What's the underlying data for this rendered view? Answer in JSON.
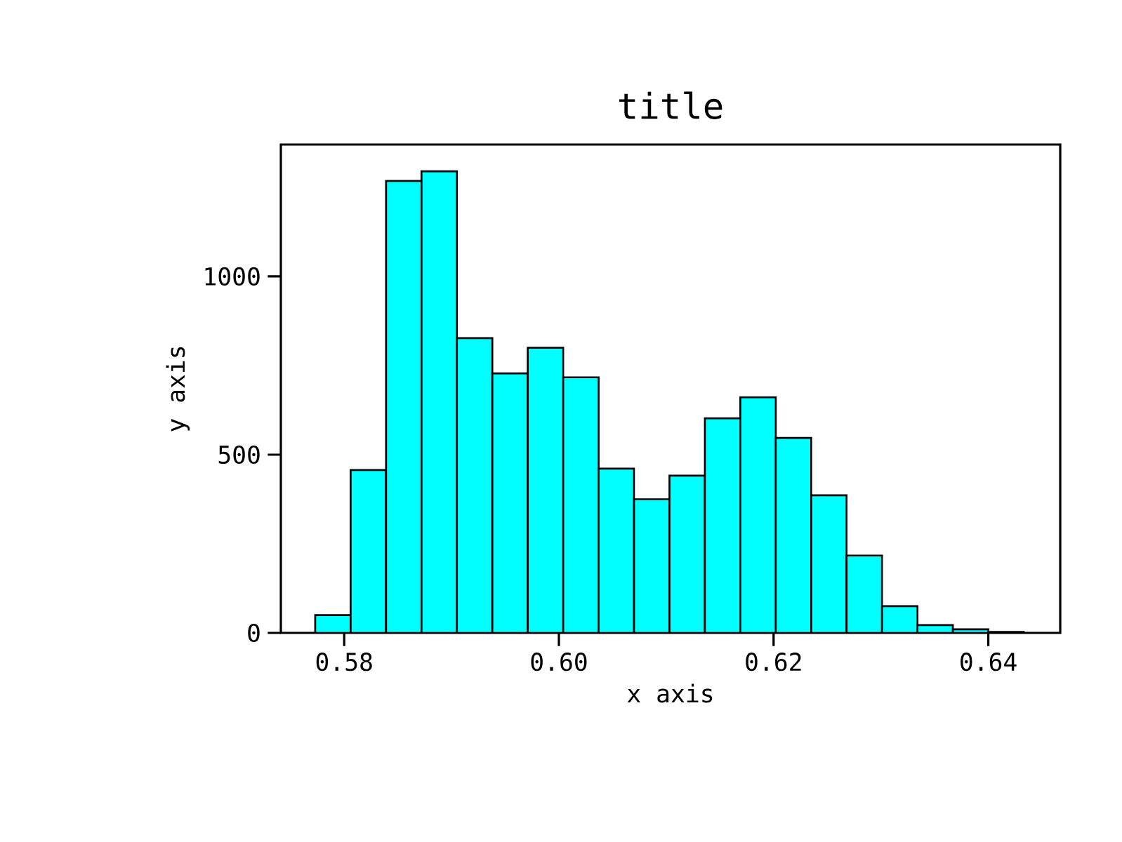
{
  "chart_data": {
    "type": "histogram",
    "title": "title",
    "xlabel": "x axis",
    "ylabel": "y axis",
    "bins": [
      0.5773,
      0.5806,
      0.5839,
      0.5872,
      0.5905,
      0.5938,
      0.5971,
      0.6004,
      0.6037,
      0.607,
      0.6103,
      0.6136,
      0.6169,
      0.6202,
      0.6235,
      0.6268,
      0.6301,
      0.6334,
      0.6367,
      0.64,
      0.6433
    ],
    "values": [
      50,
      457,
      1268,
      1295,
      827,
      728,
      800,
      717,
      461,
      375,
      441,
      602,
      661,
      547,
      386,
      217,
      75,
      22,
      10,
      3
    ],
    "color": "#00ffff",
    "xlim": [
      0.5741,
      0.6467
    ],
    "xticks": [
      {
        "value": 0.58,
        "label": "0.58"
      },
      {
        "value": 0.6,
        "label": "0.60"
      },
      {
        "value": 0.62,
        "label": "0.62"
      },
      {
        "value": 0.64,
        "label": "0.64"
      }
    ],
    "ylim": [
      0,
      1370
    ],
    "yticks": [
      0,
      500,
      1000
    ],
    "grid": false
  }
}
